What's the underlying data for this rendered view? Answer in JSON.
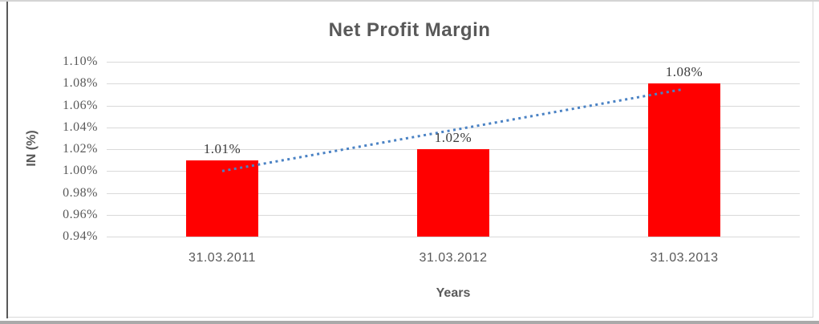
{
  "chart_data": {
    "type": "bar",
    "title": "Net Profit Margin",
    "categories": [
      "31.03.2011",
      "31.03.2012",
      "31.03.2013"
    ],
    "values": [
      1.01,
      1.02,
      1.08
    ],
    "data_labels": [
      "1.01%",
      "1.02%",
      "1.08%"
    ],
    "xlabel": "Years",
    "ylabel": "IN (%)",
    "ylim": [
      0.94,
      1.1
    ],
    "ytick_step": 0.02,
    "yticks": [
      "1.10%",
      "1.08%",
      "1.06%",
      "1.04%",
      "1.02%",
      "1.00%",
      "0.98%",
      "0.96%",
      "0.94%"
    ],
    "grid": true,
    "legend_position": "none",
    "bar_color": "#FF0000",
    "trendline": {
      "type": "linear",
      "style": "dotted",
      "color": "#4A82C4",
      "start_value": 1.0,
      "end_value": 1.075
    }
  },
  "colors": {
    "gridline": "#D9D9D9",
    "axis_text": "#595959",
    "data_label_text": "#3C3C3C",
    "title_text": "#595959",
    "outer_border_left": "#595959"
  }
}
